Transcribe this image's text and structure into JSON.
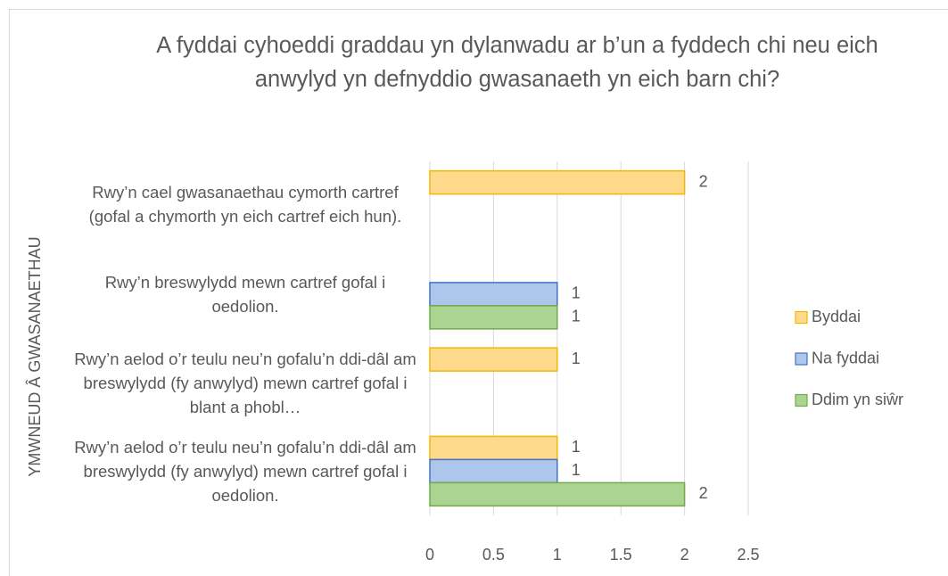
{
  "chart_data": {
    "type": "barh",
    "title": "A fyddai cyhoeddi graddau yn dylanwadu ar b’un a fyddech chi neu eich anwylyd yn defnyddio gwasanaeth yn eich barn chi?",
    "ylabel": "YMWNEUD Â GWASANAETHAU",
    "categories": [
      "Rwy’n cael gwasanaethau cymorth cartref (gofal a chymorth yn eich cartref eich hun).",
      "Rwy’n breswylydd mewn cartref gofal i oedolion.",
      "Rwy’n aelod o’r teulu neu’n gofalu’n ddi-dâl am breswylydd (fy anwylyd) mewn cartref gofal i blant a phobl…",
      "Rwy’n aelod o’r teulu neu’n gofalu’n ddi-dâl am breswylydd (fy anwylyd) mewn cartref gofal i oedolion."
    ],
    "series": [
      {
        "name": "Byddai",
        "color": "#ffd98c",
        "edgecolor": "#f2b800",
        "values": [
          2,
          null,
          1,
          1
        ]
      },
      {
        "name": "Na fyddai",
        "color": "#adc6ec",
        "edgecolor": "#4472c4",
        "values": [
          null,
          1,
          null,
          1
        ]
      },
      {
        "name": "Ddim yn siŵr",
        "color": "#abd391",
        "edgecolor": "#70ad47",
        "values": [
          null,
          1,
          null,
          2
        ]
      }
    ],
    "xlim": [
      0,
      2.5
    ],
    "xticks": [
      0,
      0.5,
      1,
      1.5,
      2,
      2.5
    ],
    "grid": true,
    "data_labels": true,
    "legend": "right"
  }
}
